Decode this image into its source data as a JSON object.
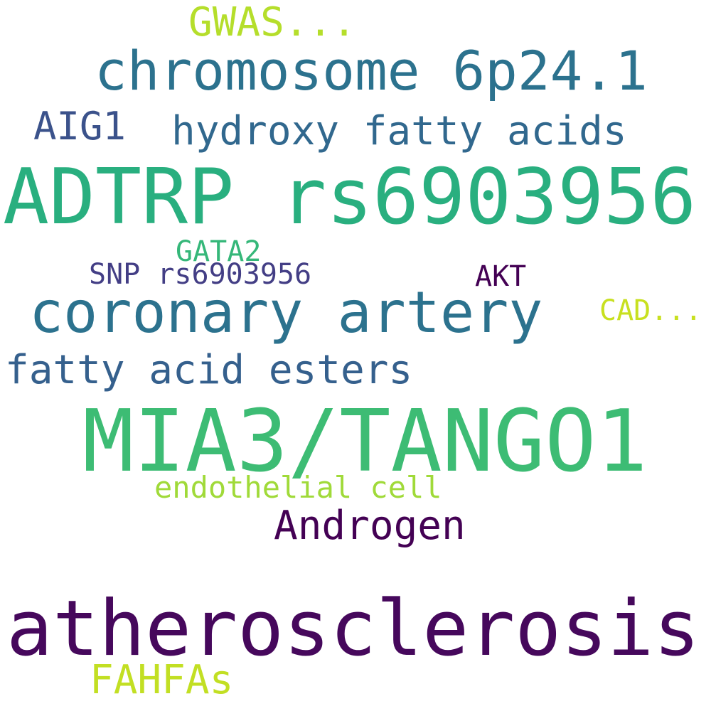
{
  "words": [
    {
      "id": "gwas",
      "text": "GWAS...",
      "color": "#b5de2b"
    },
    {
      "id": "chromosome",
      "text": "chromosome 6p24.1",
      "color": "#2c728e"
    },
    {
      "id": "aig1",
      "text": "AIG1",
      "color": "#3b528b"
    },
    {
      "id": "hydroxy_fatty_acids",
      "text": "hydroxy fatty acids",
      "color": "#31688e"
    },
    {
      "id": "adtrp",
      "text": "ADTRP rs6903956",
      "color": "#29af7f"
    },
    {
      "id": "gata2",
      "text": "GATA2",
      "color": "#35b779"
    },
    {
      "id": "snp",
      "text": "SNP rs6903956",
      "color": "#433e85"
    },
    {
      "id": "akt",
      "text": "AKT",
      "color": "#440154"
    },
    {
      "id": "coronary_artery",
      "text": "coronary artery",
      "color": "#2c728e"
    },
    {
      "id": "cad",
      "text": "CAD...",
      "color": "#c8e020"
    },
    {
      "id": "fatty_acid_esters",
      "text": "fatty acid esters",
      "color": "#35608d"
    },
    {
      "id": "mia3",
      "text": "MIA3/TANGO1",
      "color": "#3dbc74"
    },
    {
      "id": "endothelial_cell",
      "text": "endothelial cell",
      "color": "#a0da39"
    },
    {
      "id": "androgen",
      "text": "Androgen",
      "color": "#440154"
    },
    {
      "id": "atherosclerosis",
      "text": "atherosclerosis",
      "color": "#46085c"
    },
    {
      "id": "fahfas",
      "text": "FAHFAs",
      "color": "#c2df23"
    }
  ]
}
